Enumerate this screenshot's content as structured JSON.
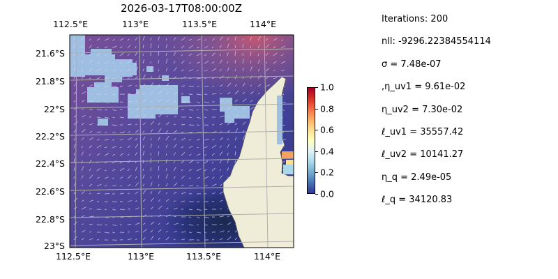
{
  "title": "2026-03-17T08:00:00Z",
  "map": {
    "lon_ticks": [
      "112.5°E",
      "113°E",
      "113.5°E",
      "114°E"
    ],
    "lat_ticks": [
      "21.6°S",
      "21.8°S",
      "22°S",
      "22.2°S",
      "22.4°S",
      "22.6°S",
      "22.8°S",
      "23°S"
    ],
    "extent": {
      "lon_min": 112.5,
      "lon_max": 114.2,
      "lat_top": -21.5,
      "lat_bottom": -23.0
    },
    "colors": {
      "land": "#efedd8",
      "nodata": "#9fbfe2",
      "grid": "#b0b0b0"
    }
  },
  "colorbar": {
    "ticks": [
      "0.0",
      "0.2",
      "0.4",
      "0.6",
      "0.8",
      "1.0"
    ],
    "colormap": "RdYlBu_r"
  },
  "stats": [
    "Iterations: 200",
    "nll: -9296.22384554114",
    "σ = 7.48e-07",
    ",η_uv1 = 9.61e-02",
    "η_uv2 = 7.30e-02",
    "ℓ_uv1 = 35557.42",
    "ℓ_uv2 = 10141.27",
    "η_q = 2.49e-05",
    "ℓ_q = 34120.83"
  ]
}
